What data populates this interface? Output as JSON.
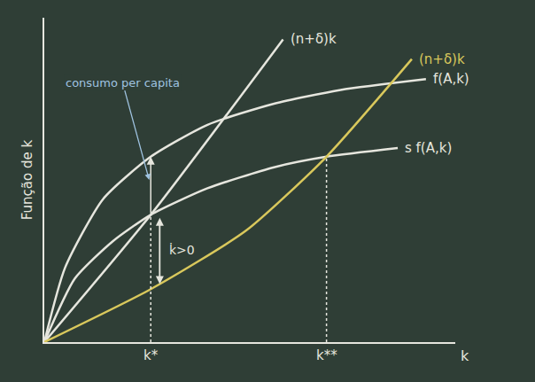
{
  "chart_data": {
    "type": "line",
    "y_label": "Função de k",
    "x_label": "k",
    "xlim": [
      0,
      105
    ],
    "ylim": [
      0,
      120
    ],
    "xticks": [],
    "yticks": [],
    "tick_labels": false,
    "grid": false,
    "series": [
      {
        "name": "f(A,k)",
        "color": "#e6e6de",
        "x": [
          0,
          5.3,
          15.0,
          27.2,
          41.7,
          58.7,
          75.7,
          97.5
        ],
        "values": [
          0,
          27.5,
          52.9,
          68.6,
          80.4,
          88.2,
          93.3,
          97.3
        ]
      },
      {
        "name": "s f(A,k)",
        "color": "#e6e6de",
        "x": [
          0,
          7.8,
          17.5,
          27.2,
          41.7,
          58.7,
          72.1,
          90.3
        ],
        "values": [
          0,
          23.5,
          37.3,
          47.1,
          56.9,
          64.7,
          68.6,
          71.8
        ]
      },
      {
        "name": "(n+δ)k",
        "color": "#e6e6de",
        "x": [
          0,
          27.2,
          61.0
        ],
        "values": [
          0,
          47.1,
          112.0
        ]
      },
      {
        "name": "(n+δ)k",
        "color": "#d9c85c",
        "x": [
          0,
          27.2,
          51.5,
          72.1,
          93.9
        ],
        "values": [
          0,
          19.6,
          41.2,
          68.6,
          104.7
        ]
      }
    ],
    "guides": [
      {
        "label": "k*",
        "x": 27.2,
        "y": 47.1
      },
      {
        "label": "k**",
        "x": 72.1,
        "y": 68.6
      }
    ],
    "arrows": [
      {
        "from": [
          27.2,
          47.1
        ],
        "to": [
          27.2,
          68.6
        ]
      },
      {
        "from": [
          29.5,
          45.0
        ],
        "to": [
          29.5,
          21.5
        ]
      },
      {
        "from": [
          29.5,
          23.0
        ],
        "to": [
          29.5,
          46.0
        ]
      }
    ],
    "annotations": [
      {
        "text": "consumo per capita",
        "x": 26.8,
        "y": 60.0,
        "tx": 20.0,
        "ty": 96.0
      },
      {
        "text": "k̇>0",
        "x": 31.5,
        "y": 34.0
      }
    ]
  }
}
